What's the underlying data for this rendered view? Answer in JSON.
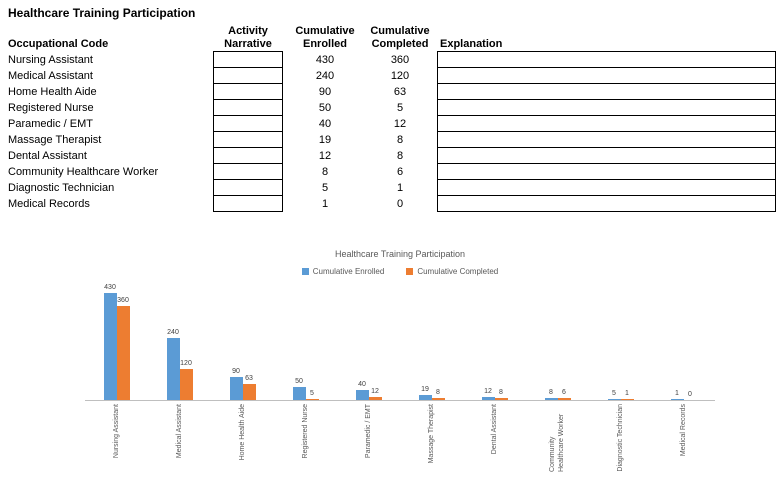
{
  "title": "Healthcare Training Participation",
  "table": {
    "headers": {
      "occupation": "Occupational Code",
      "narrative": "Activity\nNarrative",
      "enrolled": "Cumulative\nEnrolled",
      "completed": "Cumulative\nCompleted",
      "explanation": "Explanation"
    },
    "rows": [
      {
        "occupation": "Nursing Assistant",
        "narrative": "",
        "enrolled": 430,
        "completed": 360,
        "explanation": ""
      },
      {
        "occupation": "Medical Assistant",
        "narrative": "",
        "enrolled": 240,
        "completed": 120,
        "explanation": ""
      },
      {
        "occupation": "Home Health Aide",
        "narrative": "",
        "enrolled": 90,
        "completed": 63,
        "explanation": ""
      },
      {
        "occupation": "Registered Nurse",
        "narrative": "",
        "enrolled": 50,
        "completed": 5,
        "explanation": ""
      },
      {
        "occupation": "Paramedic / EMT",
        "narrative": "",
        "enrolled": 40,
        "completed": 12,
        "explanation": ""
      },
      {
        "occupation": "Massage Therapist",
        "narrative": "",
        "enrolled": 19,
        "completed": 8,
        "explanation": ""
      },
      {
        "occupation": "Dental Assistant",
        "narrative": "",
        "enrolled": 12,
        "completed": 8,
        "explanation": ""
      },
      {
        "occupation": "Community Healthcare Worker",
        "narrative": "",
        "enrolled": 8,
        "completed": 6,
        "explanation": ""
      },
      {
        "occupation": "Diagnostic Technician",
        "narrative": "",
        "enrolled": 5,
        "completed": 1,
        "explanation": ""
      },
      {
        "occupation": "Medical Records",
        "narrative": "",
        "enrolled": 1,
        "completed": 0,
        "explanation": ""
      }
    ]
  },
  "chart_data": {
    "type": "bar",
    "title": "Healthcare Training Participation",
    "categories": [
      "Nursing Assistant",
      "Medical Assistant",
      "Home Health Aide",
      "Registered Nurse",
      "Paramedic / EMT",
      "Massage Therapist",
      "Dental Assistant",
      "Community Healthcare Worker",
      "Diagnostic Technician",
      "Medical Records"
    ],
    "series": [
      {
        "name": "Cumulative Enrolled",
        "color": "#5B9BD5",
        "values": [
          430,
          240,
          90,
          50,
          40,
          19,
          12,
          8,
          5,
          1
        ]
      },
      {
        "name": "Cumulative Completed",
        "color": "#ED7D31",
        "values": [
          360,
          120,
          63,
          5,
          12,
          8,
          8,
          6,
          1,
          0
        ]
      }
    ],
    "xlabel": "",
    "ylabel": "",
    "ylim": [
      0,
      450
    ],
    "grid": false,
    "data_labels": true,
    "legend_position": "top",
    "axis_line_color": "#BFBFBF"
  }
}
